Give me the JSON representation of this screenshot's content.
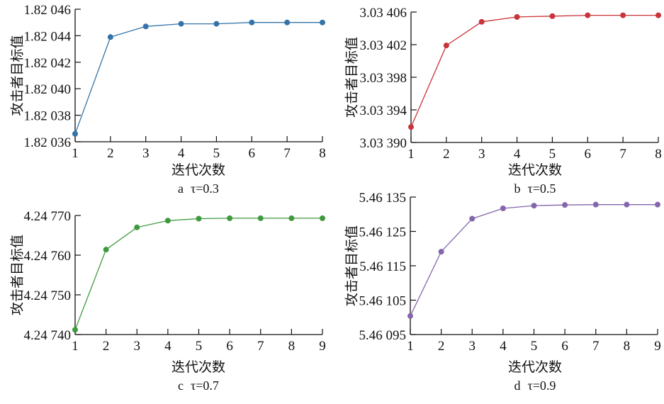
{
  "chart_data": [
    {
      "type": "line",
      "caption_letter": "a",
      "caption_param": "τ=0.3",
      "xlabel": "迭代次数",
      "ylabel": "攻击者目标值",
      "color": "#3474a8",
      "x": [
        1,
        2,
        3,
        4,
        5,
        6,
        7,
        8
      ],
      "values": [
        1.820366,
        1.820439,
        1.820447,
        1.820449,
        1.820449,
        1.82045,
        1.82045,
        1.82045
      ],
      "xlim": [
        1,
        8
      ],
      "ylim": [
        1.82036,
        1.82046
      ],
      "yticks": [
        1.82036,
        1.82038,
        1.8204,
        1.82042,
        1.82044,
        1.82046
      ],
      "ytick_labels": [
        "1.82 036",
        "1.82 038",
        "1.82 040",
        "1.82 042",
        "1.82 044",
        "1.82 046"
      ],
      "xtick_labels": [
        "1",
        "2",
        "3",
        "4",
        "5",
        "6",
        "7",
        "8"
      ],
      "grid": false
    },
    {
      "type": "line",
      "caption_letter": "b",
      "caption_param": "τ=0.5",
      "xlabel": "迭代次数",
      "ylabel": "攻击者目标值",
      "color": "#c9333a",
      "x": [
        1,
        2,
        3,
        4,
        5,
        6,
        7,
        8
      ],
      "values": [
        3.033919,
        3.034019,
        3.034048,
        3.034054,
        3.034055,
        3.034056,
        3.034056,
        3.034056
      ],
      "xlim": [
        1,
        8
      ],
      "ylim": [
        3.0339,
        3.03406
      ],
      "yticks": [
        3.0339,
        3.03394,
        3.03398,
        3.03402,
        3.03406
      ],
      "ytick_labels": [
        "3.03 390",
        "3.03 394",
        "3.03 398",
        "3.03 402",
        "3.03 406"
      ],
      "xtick_labels": [
        "1",
        "2",
        "3",
        "4",
        "5",
        "6",
        "7",
        "8"
      ],
      "grid": false
    },
    {
      "type": "line",
      "caption_letter": "c",
      "caption_param": "τ=0.7",
      "xlabel": "迭代次数",
      "ylabel": "攻击者目标值",
      "color": "#3f9a3f",
      "x": [
        1,
        2,
        3,
        4,
        5,
        6,
        7,
        8,
        9
      ],
      "values": [
        4.247412,
        4.247614,
        4.24767,
        4.247687,
        4.247692,
        4.247693,
        4.247693,
        4.247693,
        4.247693
      ],
      "xlim": [
        1,
        9
      ],
      "ylim": [
        4.2474,
        4.2477
      ],
      "yticks": [
        4.2474,
        4.2475,
        4.2476,
        4.2477
      ],
      "ytick_labels": [
        "4.24 740",
        "4.24 750",
        "4.24 760",
        "4.24 770"
      ],
      "xtick_labels": [
        "1",
        "2",
        "3",
        "4",
        "5",
        "6",
        "7",
        "8",
        "9"
      ],
      "grid": false
    },
    {
      "type": "line",
      "caption_letter": "d",
      "caption_param": "τ=0.9",
      "xlabel": "迭代次数",
      "ylabel": "攻击者目标值",
      "color": "#8466ad",
      "x": [
        1,
        2,
        3,
        4,
        5,
        6,
        7,
        8,
        9
      ],
      "values": [
        5.461004,
        5.461191,
        5.461287,
        5.461317,
        5.461325,
        5.461327,
        5.461328,
        5.461328,
        5.461328
      ],
      "xlim": [
        1,
        9
      ],
      "ylim": [
        5.46095,
        5.46135
      ],
      "yticks": [
        5.46095,
        5.46105,
        5.46115,
        5.46125,
        5.46135
      ],
      "ytick_labels": [
        "5.46 095",
        "5.46 105",
        "5.46 115",
        "5.46 125",
        "5.46 135"
      ],
      "xtick_labels": [
        "1",
        "2",
        "3",
        "4",
        "5",
        "6",
        "7",
        "8",
        "9"
      ],
      "grid": false
    }
  ]
}
